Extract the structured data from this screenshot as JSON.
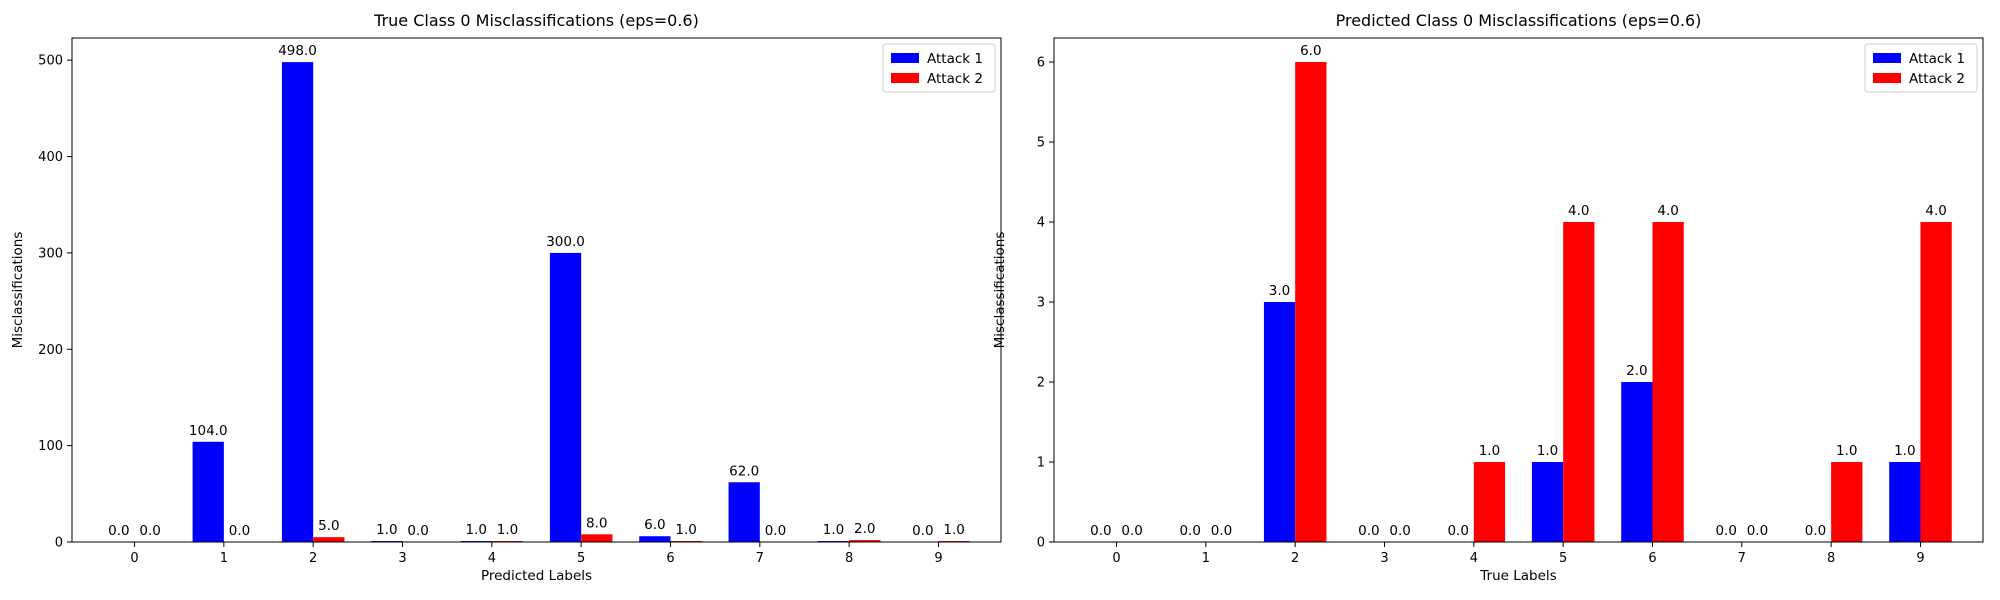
{
  "chart_data": [
    {
      "type": "bar",
      "title": "True Class 0 Misclassifications (eps=0.6)",
      "xlabel": "Predicted Labels",
      "ylabel": "Misclassifications",
      "categories": [
        "0",
        "1",
        "2",
        "3",
        "4",
        "5",
        "6",
        "7",
        "8",
        "9"
      ],
      "series": [
        {
          "name": "Attack 1",
          "color": "#0000ff",
          "values": [
            0,
            104,
            498,
            1,
            1,
            300,
            6,
            62,
            1,
            0
          ]
        },
        {
          "name": "Attack 2",
          "color": "#ff0000",
          "values": [
            0,
            0,
            5,
            0,
            1,
            8,
            1,
            0,
            2,
            1
          ]
        }
      ],
      "ylim": [
        0,
        523
      ],
      "yticks": [
        0,
        100,
        200,
        300,
        400,
        500
      ],
      "value_labels": true,
      "grid": false,
      "legend": "top-right"
    },
    {
      "type": "bar",
      "title": "Predicted Class 0 Misclassifications (eps=0.6)",
      "xlabel": "True Labels",
      "ylabel": "Misclassifications",
      "categories": [
        "0",
        "1",
        "2",
        "3",
        "4",
        "5",
        "6",
        "7",
        "8",
        "9"
      ],
      "series": [
        {
          "name": "Attack 1",
          "color": "#0000ff",
          "values": [
            0,
            0,
            3,
            0,
            0,
            1,
            2,
            0,
            0,
            1
          ]
        },
        {
          "name": "Attack 2",
          "color": "#ff0000",
          "values": [
            0,
            0,
            6,
            0,
            1,
            4,
            4,
            0,
            1,
            4
          ]
        }
      ],
      "ylim": [
        0,
        6.3
      ],
      "yticks": [
        0,
        1,
        2,
        3,
        4,
        5,
        6
      ],
      "value_labels": true,
      "grid": false,
      "legend": "top-right"
    }
  ]
}
